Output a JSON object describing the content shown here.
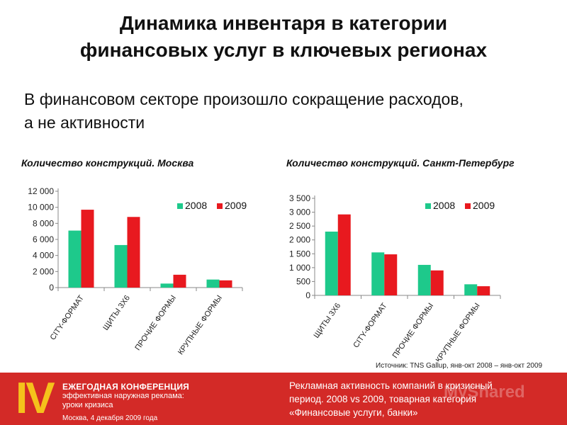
{
  "title": {
    "line1": "Динамика инвентаря в категории",
    "line2": "финансовых услуг в ключевых регионах"
  },
  "subtitle": {
    "line1": "В финансовом секторе произошло сокращение расходов,",
    "line2": "а не активности"
  },
  "colors": {
    "s2008": "#1ec98b",
    "s2009": "#e8191f"
  },
  "chart_data": [
    {
      "type": "bar",
      "title": "Количество конструкций. Москва",
      "categories": [
        "CITY-ФОРМАТ",
        "ЩИТЫ 3Х6",
        "ПРОЧИЕ ФОРМЫ",
        "КРУПНЫЕ ФОРМЫ"
      ],
      "series": [
        {
          "name": "2008",
          "values": [
            7100,
            5300,
            500,
            1000
          ]
        },
        {
          "name": "2009",
          "values": [
            9700,
            8800,
            1600,
            900
          ]
        }
      ],
      "yticks": [
        "0",
        "2 000",
        "4 000",
        "6 000",
        "8 000",
        "10 000",
        "12 000"
      ],
      "ylim": [
        0,
        12000
      ],
      "legend": "top-right",
      "grid": false
    },
    {
      "type": "bar",
      "title": "Количество конструкций. Санкт-Петербург",
      "categories": [
        "ЩИТЫ 3Х6",
        "CITY-ФОРМАТ",
        "ПРОЧИЕ ФОРМЫ",
        "КРУПНЫЕ ФОРМЫ"
      ],
      "series": [
        {
          "name": "2008",
          "values": [
            2300,
            1550,
            1100,
            400
          ]
        },
        {
          "name": "2009",
          "values": [
            2920,
            1480,
            900,
            330
          ]
        }
      ],
      "yticks": [
        "0",
        "500",
        "1 000",
        "1 500",
        "2 000",
        "2 500",
        "3 000",
        "3 500"
      ],
      "ylim": [
        0,
        3500
      ],
      "legend": "top-right",
      "grid": false
    }
  ],
  "source": "Источник: TNS  Gallup, янв-окт 2008 – янв-окт 2009",
  "footer": {
    "roman": "IV",
    "conf_line1": "ЕЖЕГОДНАЯ КОНФЕРЕНЦИЯ",
    "conf_line2": "эффективная наружная реклама:",
    "conf_line3": "уроки кризиса",
    "conf_line4": "Москва, 4 декабря 2009 года",
    "note_line1": "Рекламная активность компаний в кризисный",
    "note_line2": "период. 2008 vs 2009, товарная категория",
    "note_line3": "«Финансовые услуги, банки»",
    "watermark": "MyShared"
  }
}
